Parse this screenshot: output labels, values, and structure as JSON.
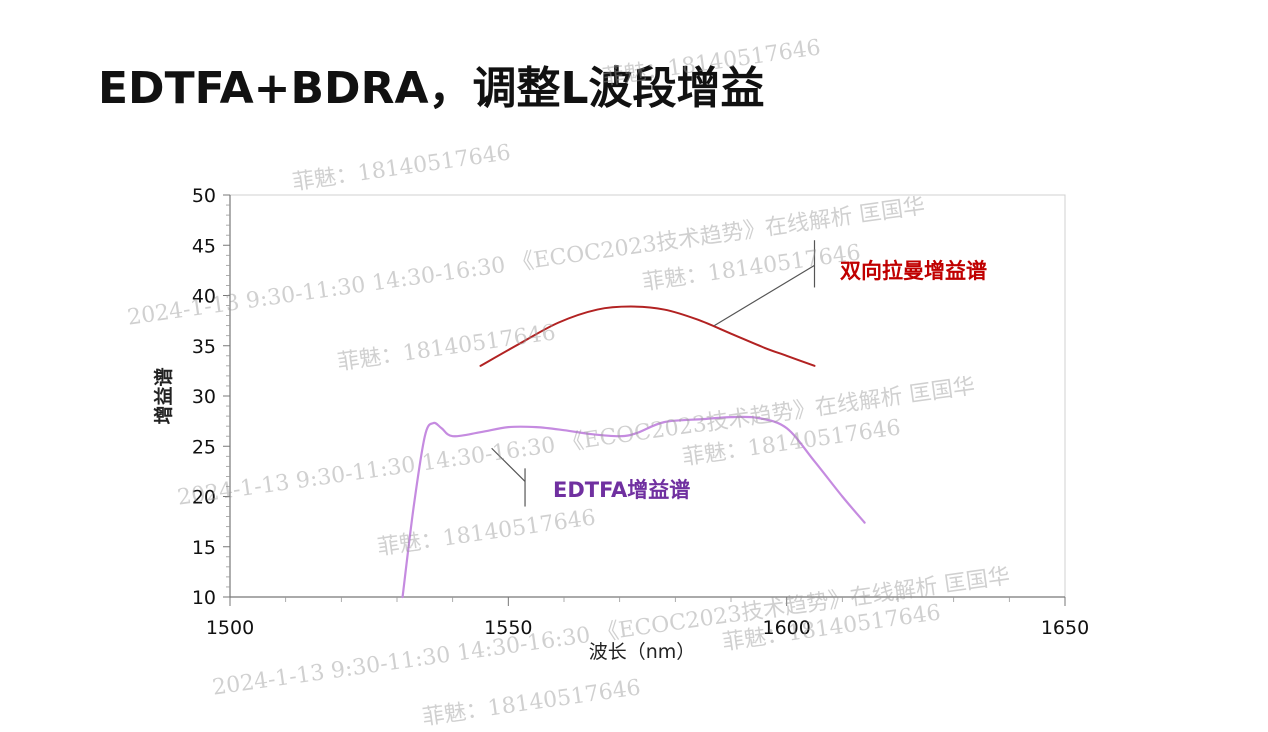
{
  "slide": {
    "title": "EDTFA+BDRA，调整L波段增益"
  },
  "watermark": {
    "lines": [
      "菲魅：18140517646",
      "2024-1-13  9:30-11:30  14:30-16:30  《ECOC2023技术趋势》在线解析  匡国华"
    ]
  },
  "chart_data": {
    "type": "line",
    "title": "",
    "xlabel": "波长（nm）",
    "ylabel": "增益谱",
    "xlim": [
      1500,
      1650
    ],
    "ylim": [
      10,
      50
    ],
    "x_ticks": [
      1500,
      1550,
      1600,
      1650
    ],
    "y_ticks": [
      10,
      15,
      20,
      25,
      30,
      35,
      40,
      45,
      50
    ],
    "grid": false,
    "series": [
      {
        "name": "双向拉曼增益谱",
        "color": "#b22222",
        "label_color": "#c00000",
        "x": [
          1545,
          1552,
          1559,
          1566,
          1572,
          1578,
          1584,
          1590,
          1596,
          1600,
          1605
        ],
        "y": [
          33.0,
          35.2,
          37.3,
          38.6,
          38.9,
          38.6,
          37.6,
          36.2,
          34.8,
          34.0,
          33.0
        ]
      },
      {
        "name": "EDTFA增益谱",
        "color": "#c58be0",
        "label_color": "#7030a0",
        "x": [
          1531,
          1533,
          1535,
          1536.5,
          1538,
          1540,
          1545,
          1550,
          1555,
          1560,
          1565,
          1570,
          1573,
          1578,
          1585,
          1590,
          1595,
          1600,
          1605,
          1610,
          1614
        ],
        "y": [
          10.0,
          19.0,
          26.0,
          27.3,
          26.8,
          26.0,
          26.4,
          26.9,
          26.9,
          26.6,
          26.2,
          26.0,
          26.3,
          27.4,
          27.7,
          27.9,
          27.8,
          26.8,
          23.5,
          20.0,
          17.4
        ]
      }
    ],
    "annotations": [
      {
        "text": "双向拉曼增益谱",
        "series": 0
      },
      {
        "text": "EDTFA增益谱",
        "series": 1
      }
    ]
  }
}
